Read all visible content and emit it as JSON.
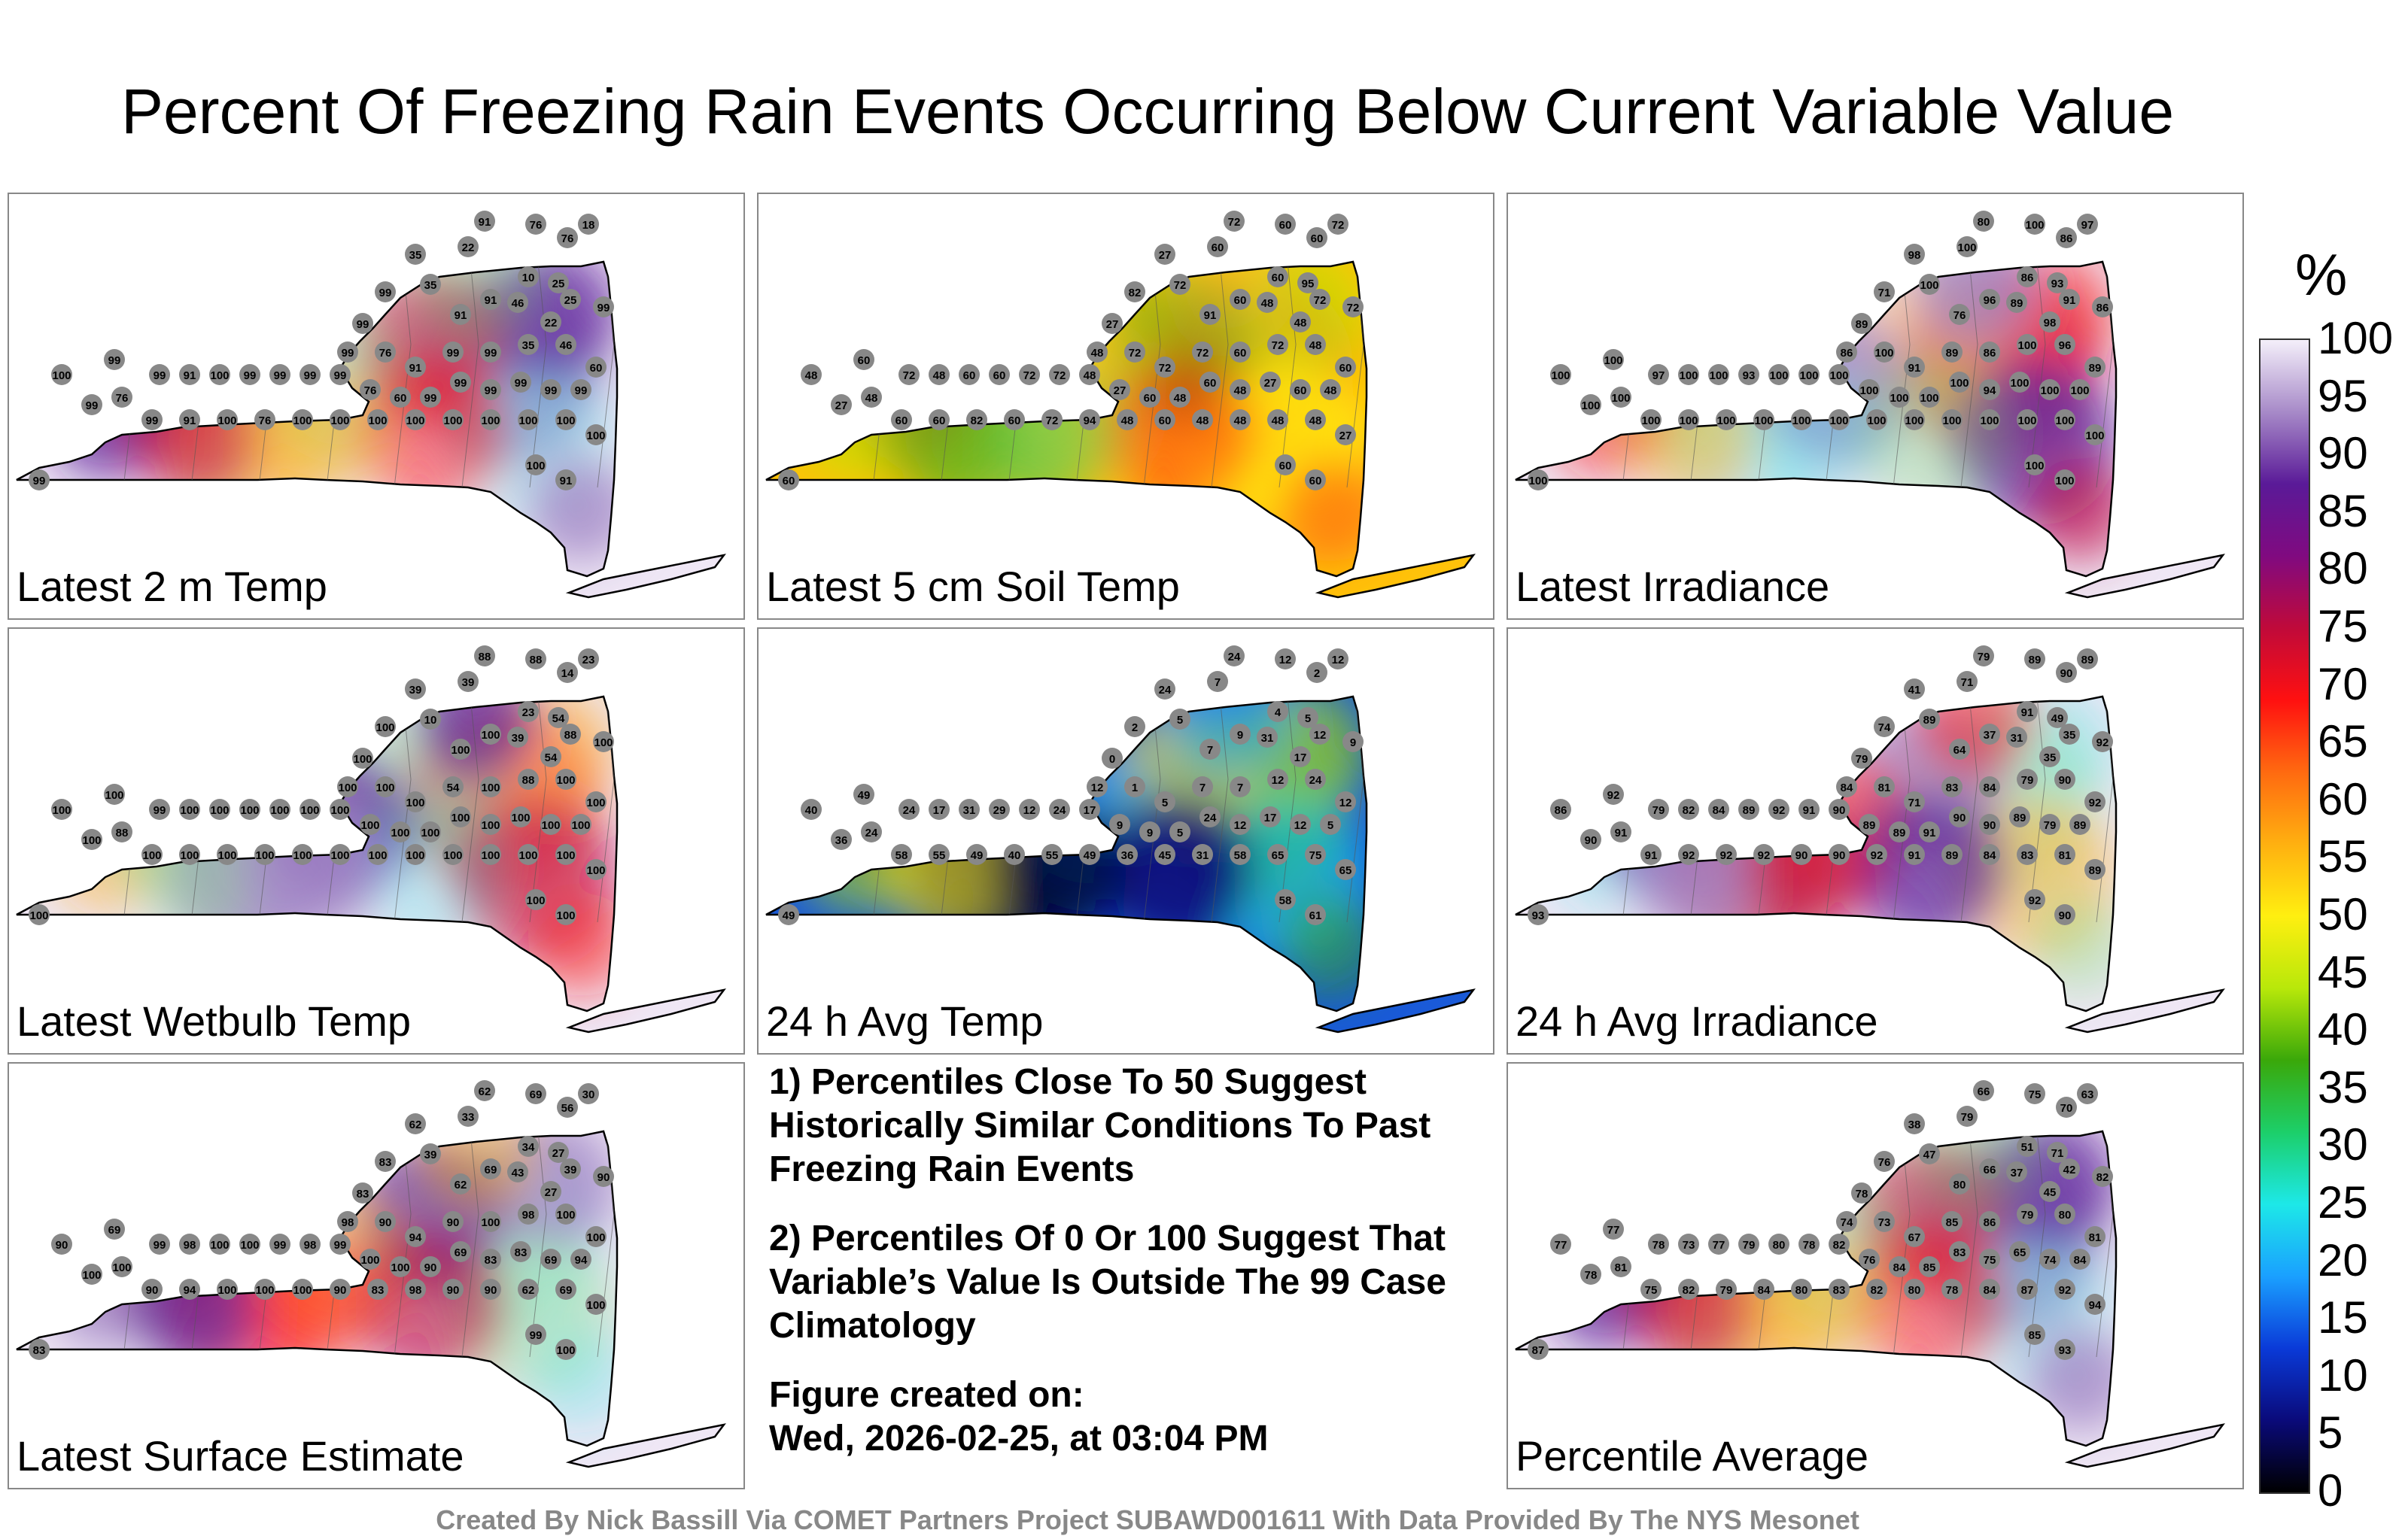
{
  "title": "Percent Of Freezing Rain Events Occurring Below Current Variable Value",
  "colors": {
    "panel_border": "#888888",
    "background": "#ffffff",
    "station_fill": "#888888"
  },
  "panels": [
    {
      "label": "Latest 2 m Temp",
      "scheme": "high",
      "stations": [
        "91",
        "76",
        "76",
        "18",
        "35",
        "22",
        "35",
        "10",
        "25",
        "46",
        "22",
        "25",
        "91",
        "91",
        "99",
        "99",
        "99",
        "76",
        "91",
        "99",
        "99",
        "35",
        "46",
        "60",
        "99",
        "99",
        "99",
        "99",
        "99",
        "99",
        "99",
        "60",
        "76",
        "99",
        "99",
        "99",
        "99",
        "100",
        "91",
        "99",
        "76",
        "99",
        "100",
        "99",
        "99",
        "91",
        "100",
        "76",
        "100",
        "100",
        "100",
        "100",
        "100",
        "100",
        "100",
        "100",
        "100",
        "100",
        "91",
        "99"
      ]
    },
    {
      "label": "Latest 5 cm Soil Temp",
      "scheme": "mid",
      "stations": [
        "72",
        "60",
        "60",
        "72",
        "27",
        "60",
        "72",
        "60",
        "95",
        "48",
        "48",
        "72",
        "60",
        "91",
        "82",
        "27",
        "48",
        "72",
        "72",
        "72",
        "60",
        "72",
        "48",
        "60",
        "72",
        "48",
        "60",
        "27",
        "48",
        "60",
        "48",
        "60",
        "27",
        "48",
        "72",
        "72",
        "60",
        "60",
        "48",
        "72",
        "48",
        "27",
        "48",
        "60",
        "60",
        "60",
        "82",
        "60",
        "72",
        "94",
        "48",
        "60",
        "48",
        "48",
        "48",
        "48",
        "27",
        "60",
        "60",
        "60"
      ]
    },
    {
      "label": "Latest Irradiance",
      "scheme": "high",
      "stations": [
        "80",
        "100",
        "86",
        "97",
        "98",
        "100",
        "100",
        "86",
        "93",
        "89",
        "98",
        "91",
        "96",
        "76",
        "71",
        "89",
        "86",
        "100",
        "91",
        "89",
        "86",
        "100",
        "96",
        "89",
        "86",
        "100",
        "100",
        "100",
        "94",
        "100",
        "100",
        "100",
        "100",
        "100",
        "100",
        "100",
        "93",
        "100",
        "100",
        "97",
        "100",
        "100",
        "100",
        "100",
        "100",
        "100",
        "100",
        "100",
        "100",
        "100",
        "100",
        "100",
        "100",
        "100",
        "100",
        "100",
        "100",
        "100",
        "100",
        "100"
      ]
    },
    {
      "label": "Latest Wetbulb Temp",
      "scheme": "high",
      "stations": [
        "88",
        "88",
        "14",
        "23",
        "39",
        "39",
        "10",
        "23",
        "54",
        "39",
        "54",
        "88",
        "100",
        "100",
        "100",
        "100",
        "100",
        "100",
        "100",
        "54",
        "100",
        "88",
        "100",
        "100",
        "100",
        "100",
        "100",
        "100",
        "100",
        "100",
        "100",
        "100",
        "100",
        "100",
        "100",
        "100",
        "100",
        "100",
        "100",
        "99",
        "88",
        "100",
        "100",
        "100",
        "100",
        "100",
        "100",
        "100",
        "100",
        "100",
        "100",
        "100",
        "100",
        "100",
        "100",
        "100",
        "100",
        "100",
        "100",
        "100"
      ]
    },
    {
      "label": "24 h Avg Temp",
      "scheme": "low",
      "stations": [
        "24",
        "12",
        "2",
        "12",
        "24",
        "7",
        "5",
        "4",
        "5",
        "31",
        "17",
        "12",
        "9",
        "7",
        "2",
        "0",
        "12",
        "1",
        "5",
        "7",
        "7",
        "12",
        "24",
        "12",
        "9",
        "5",
        "12",
        "17",
        "12",
        "24",
        "5",
        "9",
        "9",
        "17",
        "24",
        "12",
        "29",
        "31",
        "17",
        "24",
        "24",
        "36",
        "40",
        "49",
        "58",
        "55",
        "49",
        "40",
        "55",
        "49",
        "36",
        "45",
        "31",
        "58",
        "65",
        "75",
        "65",
        "58",
        "61",
        "49"
      ]
    },
    {
      "label": "24 h Avg Irradiance",
      "scheme": "high",
      "stations": [
        "79",
        "89",
        "90",
        "89",
        "41",
        "71",
        "89",
        "91",
        "49",
        "31",
        "35",
        "35",
        "37",
        "64",
        "74",
        "79",
        "84",
        "81",
        "71",
        "83",
        "84",
        "79",
        "90",
        "92",
        "92",
        "89",
        "79",
        "89",
        "90",
        "90",
        "91",
        "89",
        "89",
        "90",
        "91",
        "92",
        "89",
        "84",
        "82",
        "79",
        "91",
        "90",
        "86",
        "92",
        "91",
        "92",
        "92",
        "92",
        "90",
        "90",
        "92",
        "91",
        "89",
        "84",
        "83",
        "81",
        "89",
        "92",
        "90",
        "93"
      ]
    },
    {
      "label": "Latest Surface Estimate",
      "scheme": "high",
      "stations": [
        "62",
        "69",
        "56",
        "30",
        "62",
        "33",
        "39",
        "34",
        "27",
        "43",
        "27",
        "39",
        "69",
        "62",
        "83",
        "83",
        "98",
        "90",
        "94",
        "90",
        "100",
        "98",
        "100",
        "100",
        "90",
        "94",
        "69",
        "83",
        "83",
        "69",
        "90",
        "100",
        "100",
        "99",
        "98",
        "99",
        "100",
        "100",
        "98",
        "99",
        "100",
        "100",
        "90",
        "69",
        "90",
        "94",
        "100",
        "100",
        "100",
        "90",
        "83",
        "98",
        "90",
        "90",
        "62",
        "69",
        "100",
        "99",
        "100",
        "83"
      ]
    },
    {
      "label": "Percentile Average",
      "scheme": "high",
      "stations": [
        "66",
        "75",
        "70",
        "63",
        "38",
        "79",
        "47",
        "51",
        "71",
        "37",
        "45",
        "42",
        "66",
        "80",
        "76",
        "78",
        "74",
        "73",
        "67",
        "85",
        "86",
        "79",
        "80",
        "81",
        "82",
        "84",
        "74",
        "65",
        "75",
        "83",
        "85",
        "84",
        "76",
        "82",
        "78",
        "80",
        "79",
        "77",
        "73",
        "78",
        "81",
        "78",
        "77",
        "77",
        "75",
        "82",
        "79",
        "84",
        "80",
        "83",
        "82",
        "80",
        "78",
        "84",
        "87",
        "92",
        "94",
        "85",
        "93",
        "87"
      ]
    }
  ],
  "notes": [
    "1) Percentiles Close To 50 Suggest Historically Similar Conditions To Past Freezing Rain Events",
    "2) Percentiles Of 0 Or 100 Suggest That Variable’s Value Is Outside The 99 Case Climatology",
    "Figure created on:",
    "Wed, 2026-02-25, at 03:04 PM"
  ],
  "colorbar": {
    "title": "%",
    "ticks": [
      "100",
      "95",
      "90",
      "85",
      "80",
      "75",
      "70",
      "65",
      "60",
      "55",
      "50",
      "45",
      "40",
      "35",
      "30",
      "25",
      "20",
      "15",
      "10",
      "5",
      "0"
    ],
    "stops": [
      "#000000",
      "#0a0a7a",
      "#0a3ad8",
      "#1aa0ff",
      "#1de8e8",
      "#1ccf6a",
      "#3aa80a",
      "#b8e80a",
      "#ffef10",
      "#ffb010",
      "#ff6a10",
      "#ff1010",
      "#c00a3a",
      "#800a80",
      "#5a1a98",
      "#a78ac8",
      "#f4effa"
    ]
  },
  "credit": "Created By Nick Bassill Via COMET Partners Project SUBAWD001611 With Data Provided By The NYS Mesonet"
}
